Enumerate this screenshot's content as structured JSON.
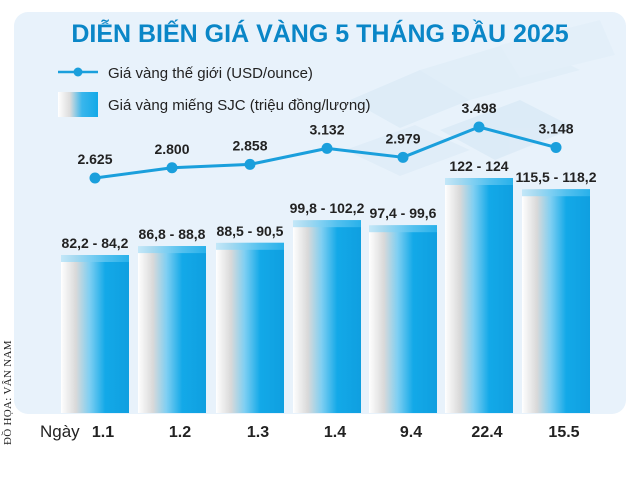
{
  "credit": "ĐỒ HỌA: VÂN NAM",
  "colors": {
    "title": "#0a86c7",
    "line": "#1a9fdc",
    "bar": "#13a9e8",
    "panel": "#e7f1fa",
    "text": "#222222"
  },
  "chart_data": {
    "type": "bar",
    "title": "DIỄN BIẾN GIÁ VÀNG 5 THÁNG ĐẦU 2025",
    "xlabel": "Ngày",
    "categories": [
      "1.1",
      "1.2",
      "1.3",
      "1.4",
      "9.4",
      "22.4",
      "15.5"
    ],
    "series": [
      {
        "name": "Giá vàng miếng SJC (triệu đồng/lượng)",
        "kind": "bar-range",
        "low": [
          82.2,
          86.8,
          88.5,
          99.8,
          97.4,
          122,
          115.5
        ],
        "high": [
          84.2,
          88.8,
          90.5,
          102.2,
          99.6,
          124,
          118.2
        ],
        "labels": [
          "82,2 - 84,2",
          "86,8 - 88,8",
          "88,5 - 90,5",
          "99,8 - 102,2",
          "97,4 - 99,6",
          "122 - 124",
          "115,5 - 118,2"
        ]
      },
      {
        "name": "Giá vàng thế giới (USD/ounce)",
        "kind": "line",
        "values": [
          2625,
          2800,
          2858,
          3132,
          2979,
          3498,
          3148
        ],
        "labels": [
          "2.625",
          "2.800",
          "2.858",
          "3.132",
          "2.979",
          "3.498",
          "3.148"
        ]
      }
    ],
    "legend": "top-left",
    "grid": false
  }
}
